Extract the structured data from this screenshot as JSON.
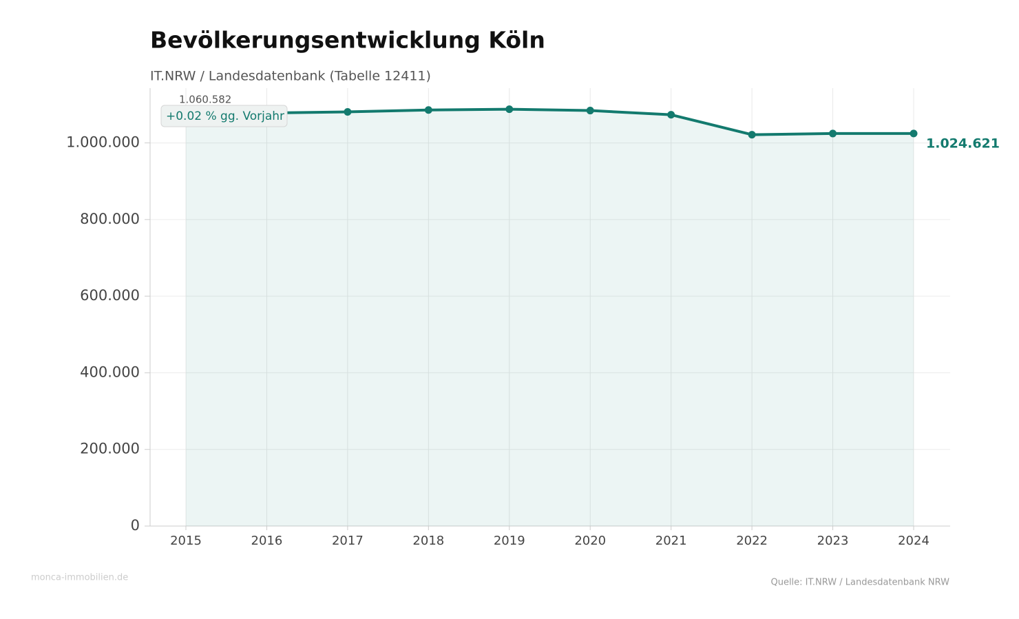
{
  "chart_data": {
    "type": "line",
    "title": "Bevölkerungsentwicklung Köln",
    "subtitle": "IT.NRW / Landesdatenbank (Tabelle 12411)",
    "categories": [
      "2015",
      "2016",
      "2017",
      "2018",
      "2019",
      "2020",
      "2021",
      "2022",
      "2023",
      "2024"
    ],
    "values": [
      1060582,
      1078000,
      1081000,
      1086000,
      1088000,
      1084500,
      1073500,
      1021500,
      1024500,
      1024621
    ],
    "value_labels": [
      "1.060.582",
      null,
      null,
      null,
      null,
      null,
      null,
      null,
      null,
      "1.024.621"
    ],
    "color": "#137a6e",
    "area": true,
    "annotation": "+0.02 % gg. Vorjahr",
    "ylim": [
      0,
      1143000
    ],
    "yticks": [
      0,
      {
        "value": 200000,
        "label": "200.000"
      },
      {
        "value": 400000,
        "label": "400.000"
      },
      {
        "value": 600000,
        "label": "600.000"
      },
      {
        "value": 800000,
        "label": "800.000"
      },
      {
        "value": 1000000,
        "label": "1.000.000"
      }
    ],
    "grid": true,
    "watermark": "monca-immobilien.de",
    "source": "Quelle: IT.NRW / Landesdatenbank NRW"
  }
}
